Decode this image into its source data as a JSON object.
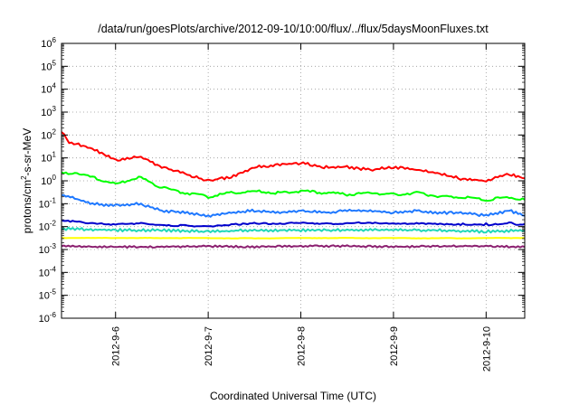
{
  "chart_data": {
    "type": "line",
    "title": "/data/run/goesPlots/archive/2012-09-10/10:00/flux/../flux/5daysMoonFluxes.txt",
    "xlabel": "Coordinated Universal Time (UTC)",
    "ylabel_prefix": "protons/cm",
    "ylabel_sup": "2",
    "ylabel_suffix": "-s-sr-MeV",
    "yscale": "log",
    "ylim": [
      1e-06,
      1000000.0
    ],
    "y_ticks": [
      {
        "value": 1e-06,
        "base": "10",
        "exp": "-6"
      },
      {
        "value": 1e-05,
        "base": "10",
        "exp": "-5"
      },
      {
        "value": 0.0001,
        "base": "10",
        "exp": "-4"
      },
      {
        "value": 0.001,
        "base": "10",
        "exp": "-3"
      },
      {
        "value": 0.01,
        "base": "10",
        "exp": "-2"
      },
      {
        "value": 0.1,
        "base": "10",
        "exp": "-1"
      },
      {
        "value": 1,
        "base": "10",
        "exp": "0"
      },
      {
        "value": 10,
        "base": "10",
        "exp": "1"
      },
      {
        "value": 100,
        "base": "10",
        "exp": "2"
      },
      {
        "value": 1000,
        "base": "10",
        "exp": "3"
      },
      {
        "value": 10000,
        "base": "10",
        "exp": "4"
      },
      {
        "value": 100000,
        "base": "10",
        "exp": "5"
      },
      {
        "value": 1000000,
        "base": "10",
        "exp": "6"
      }
    ],
    "xlim": [
      "2012-09-05T10:00",
      "2012-09-10T10:00"
    ],
    "x_ticks": [
      "2012-9-6",
      "2012-9-7",
      "2012-9-8",
      "2012-9-9",
      "2012-9-10"
    ],
    "grid": true,
    "legend": "none",
    "series": [
      {
        "color": "#ff0000",
        "x": [
          "2012-09-05T10:00",
          "2012-09-05T12:00",
          "2012-09-05T18:00",
          "2012-09-06T00:00",
          "2012-09-06T06:00",
          "2012-09-06T12:00",
          "2012-09-06T18:00",
          "2012-09-07T00:00",
          "2012-09-07T06:00",
          "2012-09-07T12:00",
          "2012-09-07T18:00",
          "2012-09-08T00:00",
          "2012-09-08T06:00",
          "2012-09-08T12:00",
          "2012-09-08T18:00",
          "2012-09-09T00:00",
          "2012-09-09T06:00",
          "2012-09-09T12:00",
          "2012-09-09T18:00",
          "2012-09-10T00:00",
          "2012-09-10T06:00",
          "2012-09-10T10:00"
        ],
        "y": [
          150,
          50,
          25,
          8,
          12,
          4,
          2,
          1,
          1.5,
          4,
          5,
          6,
          4,
          4,
          3,
          4,
          3,
          2,
          1.2,
          1,
          2,
          1.3
        ]
      },
      {
        "color": "#00ff00",
        "x": [
          "2012-09-05T10:00",
          "2012-09-05T18:00",
          "2012-09-06T00:00",
          "2012-09-06T06:00",
          "2012-09-06T12:00",
          "2012-09-06T18:00",
          "2012-09-07T00:00",
          "2012-09-07T06:00",
          "2012-09-07T12:00",
          "2012-09-07T18:00",
          "2012-09-08T00:00",
          "2012-09-08T06:00",
          "2012-09-08T12:00",
          "2012-09-08T18:00",
          "2012-09-09T00:00",
          "2012-09-09T06:00",
          "2012-09-09T12:00",
          "2012-09-09T18:00",
          "2012-09-10T00:00",
          "2012-09-10T06:00",
          "2012-09-10T10:00"
        ],
        "y": [
          2.5,
          1.5,
          0.7,
          1.5,
          0.5,
          0.3,
          0.2,
          0.3,
          0.35,
          0.3,
          0.35,
          0.3,
          0.25,
          0.3,
          0.25,
          0.3,
          0.2,
          0.2,
          0.15,
          0.2,
          0.15
        ]
      },
      {
        "color": "#1e78ff",
        "x": [
          "2012-09-05T10:00",
          "2012-09-05T18:00",
          "2012-09-06T00:00",
          "2012-09-06T06:00",
          "2012-09-06T12:00",
          "2012-09-06T18:00",
          "2012-09-07T00:00",
          "2012-09-07T06:00",
          "2012-09-07T12:00",
          "2012-09-07T18:00",
          "2012-09-08T00:00",
          "2012-09-08T06:00",
          "2012-09-08T12:00",
          "2012-09-08T18:00",
          "2012-09-09T00:00",
          "2012-09-09T06:00",
          "2012-09-09T12:00",
          "2012-09-09T18:00",
          "2012-09-10T00:00",
          "2012-09-10T06:00",
          "2012-09-10T10:00"
        ],
        "y": [
          0.25,
          0.1,
          0.08,
          0.1,
          0.05,
          0.04,
          0.03,
          0.04,
          0.05,
          0.04,
          0.05,
          0.04,
          0.05,
          0.05,
          0.04,
          0.05,
          0.04,
          0.04,
          0.03,
          0.05,
          0.03
        ]
      },
      {
        "color": "#0000cc",
        "x": [
          "2012-09-05T10:00",
          "2012-09-05T18:00",
          "2012-09-06T00:00",
          "2012-09-06T06:00",
          "2012-09-06T12:00",
          "2012-09-06T18:00",
          "2012-09-07T00:00",
          "2012-09-07T06:00",
          "2012-09-07T12:00",
          "2012-09-07T18:00",
          "2012-09-08T00:00",
          "2012-09-08T06:00",
          "2012-09-08T12:00",
          "2012-09-08T18:00",
          "2012-09-09T00:00",
          "2012-09-09T06:00",
          "2012-09-09T12:00",
          "2012-09-09T18:00",
          "2012-09-10T00:00",
          "2012-09-10T06:00",
          "2012-09-10T10:00"
        ],
        "y": [
          0.02,
          0.015,
          0.013,
          0.015,
          0.012,
          0.012,
          0.011,
          0.013,
          0.015,
          0.014,
          0.016,
          0.014,
          0.015,
          0.016,
          0.014,
          0.015,
          0.014,
          0.013,
          0.013,
          0.014,
          0.013
        ]
      },
      {
        "color": "#20d8b8",
        "x": [
          "2012-09-05T10:00",
          "2012-09-06T00:00",
          "2012-09-06T12:00",
          "2012-09-07T00:00",
          "2012-09-07T12:00",
          "2012-09-08T00:00",
          "2012-09-08T12:00",
          "2012-09-09T00:00",
          "2012-09-09T12:00",
          "2012-09-10T00:00",
          "2012-09-10T10:00"
        ],
        "y": [
          0.008,
          0.007,
          0.007,
          0.006,
          0.007,
          0.007,
          0.007,
          0.007,
          0.007,
          0.006,
          0.007
        ]
      },
      {
        "color": "#ffff00",
        "x": [
          "2012-09-05T10:00",
          "2012-09-06T10:00",
          "2012-09-07T10:00",
          "2012-09-08T10:00",
          "2012-09-09T10:00",
          "2012-09-10T10:00"
        ],
        "y": [
          0.0032,
          0.0032,
          0.0031,
          0.0032,
          0.0031,
          0.0032
        ]
      },
      {
        "color": "#8b2070",
        "x": [
          "2012-09-05T10:00",
          "2012-09-06T00:00",
          "2012-09-06T12:00",
          "2012-09-07T00:00",
          "2012-09-07T12:00",
          "2012-09-08T00:00",
          "2012-09-08T12:00",
          "2012-09-09T00:00",
          "2012-09-09T12:00",
          "2012-09-10T00:00",
          "2012-09-10T10:00"
        ],
        "y": [
          0.0014,
          0.0013,
          0.0013,
          0.0014,
          0.0013,
          0.0014,
          0.0014,
          0.0013,
          0.0014,
          0.0014,
          0.0013
        ]
      }
    ]
  }
}
